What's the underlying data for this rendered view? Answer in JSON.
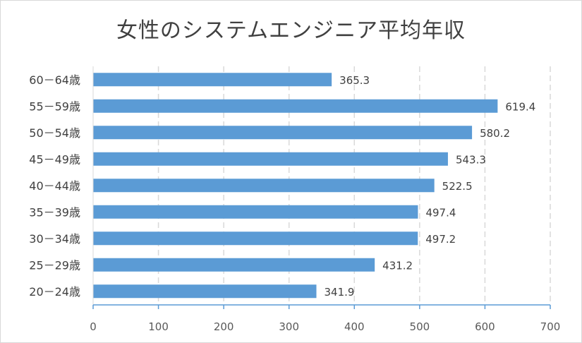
{
  "chart_data": {
    "type": "bar",
    "orientation": "horizontal",
    "title": "女性のシステムエンジニア平均年収",
    "categories": [
      "20－24歳",
      "25－29歳",
      "30－34歳",
      "35－39歳",
      "40－44歳",
      "45－49歳",
      "50－54歳",
      "55－59歳",
      "60－64歳"
    ],
    "values": [
      341.9,
      431.2,
      497.2,
      497.4,
      522.5,
      543.3,
      580.2,
      619.4,
      365.3
    ],
    "value_labels": [
      "341.9",
      "431.2",
      "497.2",
      "497.4",
      "522.5",
      "543.3",
      "580.2",
      "619.4",
      "365.3"
    ],
    "xlim": [
      0,
      700
    ],
    "xticks": [
      "0",
      "100",
      "200",
      "300",
      "400",
      "500",
      "600",
      "700"
    ],
    "grid": "vertical-dashed",
    "bar_color": "#5b9bd5",
    "axis_color": "#5b9bd5",
    "grid_color": "#d9d9d9"
  }
}
